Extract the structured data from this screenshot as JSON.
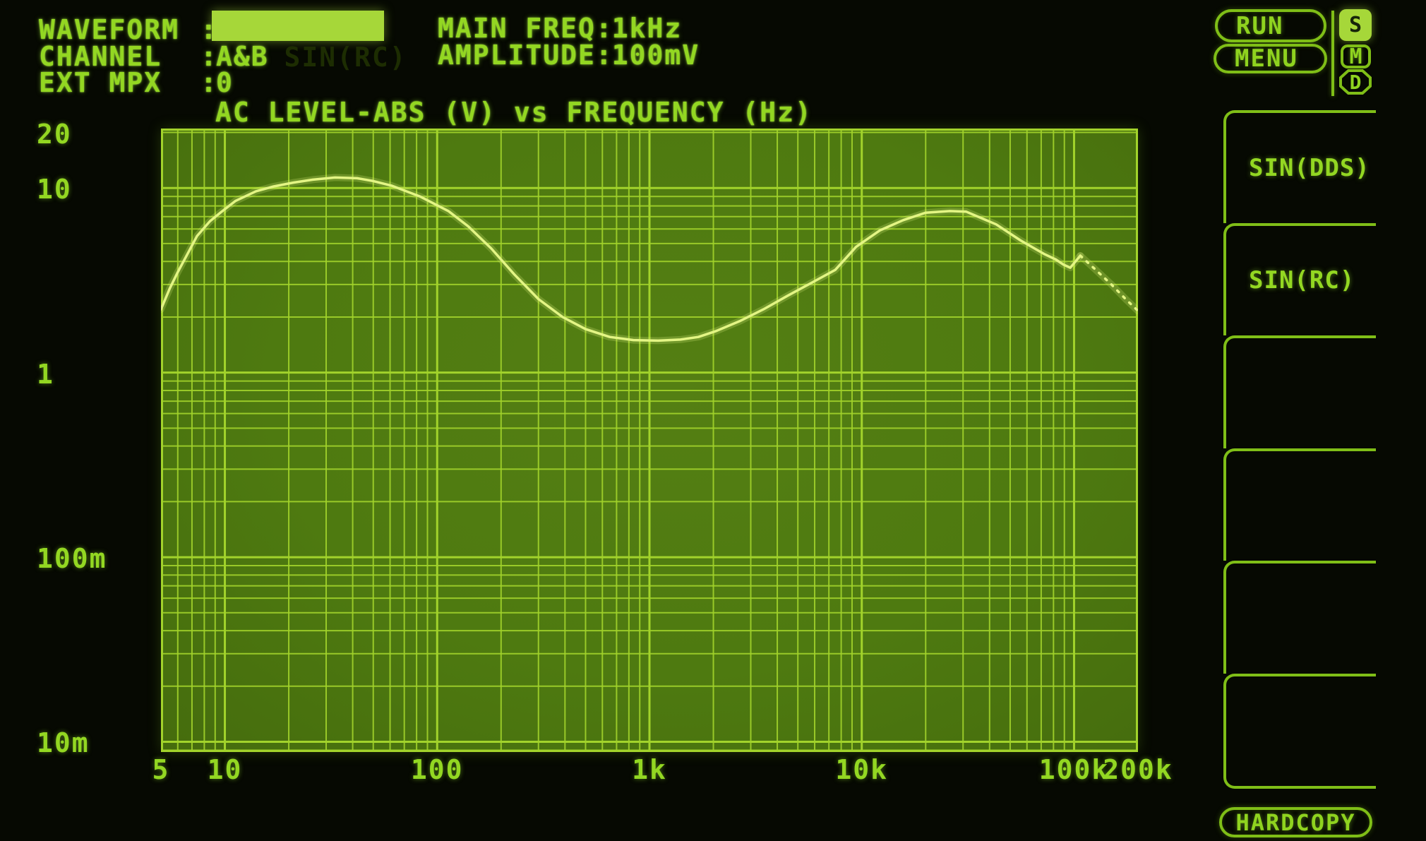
{
  "screen": {
    "bg": "#060902",
    "text_color": "#93d722"
  },
  "header": {
    "fields": [
      {
        "label": "WAVEFORM",
        "sep": ":",
        "value": "SIN(RC)",
        "highlighted": true
      },
      {
        "label": "CHANNEL",
        "sep": ":",
        "value": "A&B",
        "highlighted": false
      },
      {
        "label": "EXT MPX",
        "sep": ":",
        "value": "0",
        "highlighted": false
      }
    ],
    "params": [
      {
        "label": "MAIN FREQ",
        "sep": ":",
        "value": "1kHz"
      },
      {
        "label": "AMPLITUDE",
        "sep": ":",
        "value": "100mV"
      }
    ],
    "run_button": "RUN",
    "menu_button": "MENU",
    "status_badges": [
      {
        "label": "S",
        "active": true,
        "shape": "rounded-square"
      },
      {
        "label": "M",
        "active": false,
        "shape": "rounded-square"
      },
      {
        "label": "D",
        "active": false,
        "shape": "octagon"
      }
    ]
  },
  "side_menu": {
    "items": [
      {
        "label": "SIN(DDS)"
      },
      {
        "label": "SIN(RC)"
      },
      {
        "label": ""
      },
      {
        "label": ""
      },
      {
        "label": ""
      },
      {
        "label": ""
      }
    ],
    "hardcopy_button": "HARDCOPY"
  },
  "chart_data": {
    "type": "line",
    "title": "AC LEVEL-ABS (V) vs FREQUENCY (Hz)",
    "x_label": "FREQUENCY (Hz)",
    "y_label": "AC LEVEL-ABS (V)",
    "x_scale": "log",
    "y_scale": "log",
    "x_range": [
      5,
      200000
    ],
    "y_range": [
      0.0088,
      21
    ],
    "grid": true,
    "legend": "none",
    "x_ticks": [
      {
        "value": 5,
        "label": "5"
      },
      {
        "value": 10,
        "label": "10"
      },
      {
        "value": 100,
        "label": "100"
      },
      {
        "value": 1000,
        "label": "1k"
      },
      {
        "value": 10000,
        "label": "10k"
      },
      {
        "value": 100000,
        "label": "100k"
      },
      {
        "value": 200000,
        "label": "200k"
      }
    ],
    "y_ticks": [
      {
        "value": 20,
        "label": "20"
      },
      {
        "value": 10,
        "label": "10"
      },
      {
        "value": 1,
        "label": "1"
      },
      {
        "value": 0.1,
        "label": "100m"
      },
      {
        "value": 0.01,
        "label": "10m"
      }
    ],
    "series": [
      {
        "name": "ac-level-trace",
        "style": "solid",
        "points": [
          [
            5,
            2.2
          ],
          [
            5.5,
            2.85
          ],
          [
            6,
            3.5
          ],
          [
            6.6,
            4.3
          ],
          [
            7.4,
            5.5
          ],
          [
            8.5,
            6.6
          ],
          [
            9.6,
            7.4
          ],
          [
            11.2,
            8.5
          ],
          [
            14,
            9.6
          ],
          [
            17,
            10.2
          ],
          [
            21,
            10.7
          ],
          [
            26,
            11.1
          ],
          [
            33,
            11.4
          ],
          [
            42,
            11.3
          ],
          [
            50,
            10.9
          ],
          [
            61,
            10.3
          ],
          [
            83,
            9.0
          ],
          [
            113,
            7.5
          ],
          [
            140,
            6.2
          ],
          [
            180,
            4.7
          ],
          [
            231,
            3.4
          ],
          [
            300,
            2.5
          ],
          [
            390,
            2.0
          ],
          [
            500,
            1.72
          ],
          [
            650,
            1.56
          ],
          [
            840,
            1.5
          ],
          [
            1100,
            1.49
          ],
          [
            1400,
            1.51
          ],
          [
            1700,
            1.56
          ],
          [
            2060,
            1.68
          ],
          [
            2660,
            1.9
          ],
          [
            3440,
            2.2
          ],
          [
            4450,
            2.6
          ],
          [
            5760,
            3.05
          ],
          [
            7500,
            3.6
          ],
          [
            9400,
            4.8
          ],
          [
            12200,
            5.9
          ],
          [
            15700,
            6.7
          ],
          [
            20000,
            7.35
          ],
          [
            26000,
            7.5
          ],
          [
            31000,
            7.45
          ],
          [
            43000,
            6.35
          ],
          [
            56000,
            5.2
          ],
          [
            72000,
            4.4
          ],
          [
            82000,
            4.1
          ],
          [
            89000,
            3.85
          ],
          [
            96000,
            3.7
          ],
          [
            107000,
            4.3
          ]
        ]
      },
      {
        "name": "ac-level-trace-dotted",
        "style": "dotted",
        "points": [
          [
            107000,
            4.3
          ],
          [
            125000,
            3.65
          ],
          [
            150000,
            3.0
          ],
          [
            175000,
            2.5
          ],
          [
            200000,
            2.16
          ]
        ]
      }
    ],
    "colors": {
      "plot_bg": "#4e7a10",
      "grid_line": "#a2d32b",
      "trace": "#e3f584"
    }
  }
}
